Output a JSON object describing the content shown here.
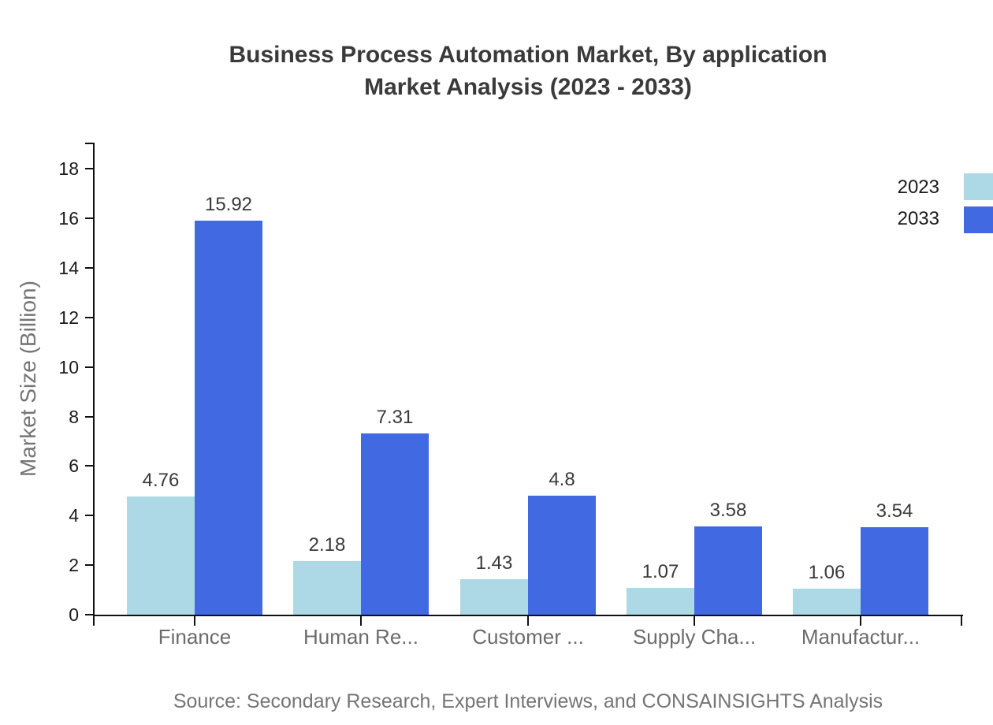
{
  "header": {
    "title_line1": "Business Process Automation Market, By application",
    "title_line2": "Market Analysis (2023 - 2033)"
  },
  "footer": {
    "source": "Source: Secondary Research, Expert Interviews, and CONSAINSIGHTS Analysis"
  },
  "chart_data": {
    "type": "bar",
    "title": "Business Process Automation Market, By application Market Analysis (2023 - 2033)",
    "categories": [
      "Finance",
      "Human Re...",
      "Customer ...",
      "Supply Cha...",
      "Manufactur..."
    ],
    "series": [
      {
        "name": "2023",
        "color": "#ADD8E6",
        "values": [
          4.76,
          2.18,
          1.43,
          1.07,
          1.06
        ]
      },
      {
        "name": "2033",
        "color": "#4169E1",
        "values": [
          15.92,
          7.31,
          4.8,
          3.58,
          3.54
        ]
      }
    ],
    "xlabel": "",
    "ylabel": "Market Size (Billion)",
    "ylim": [
      0,
      18
    ],
    "ytick_step": 2,
    "grid": false,
    "legend_position": "top-right",
    "bar_value_labels": true
  },
  "colors": {
    "series_2023": "#ADD8E6",
    "series_2033": "#4169E1",
    "axis": "#111111",
    "title_text": "#3a3a3a",
    "value_text": "#3a3a3a",
    "tick_text": "#1a1a1a",
    "category_text": "#6b6b6b",
    "muted_text": "#757575"
  }
}
